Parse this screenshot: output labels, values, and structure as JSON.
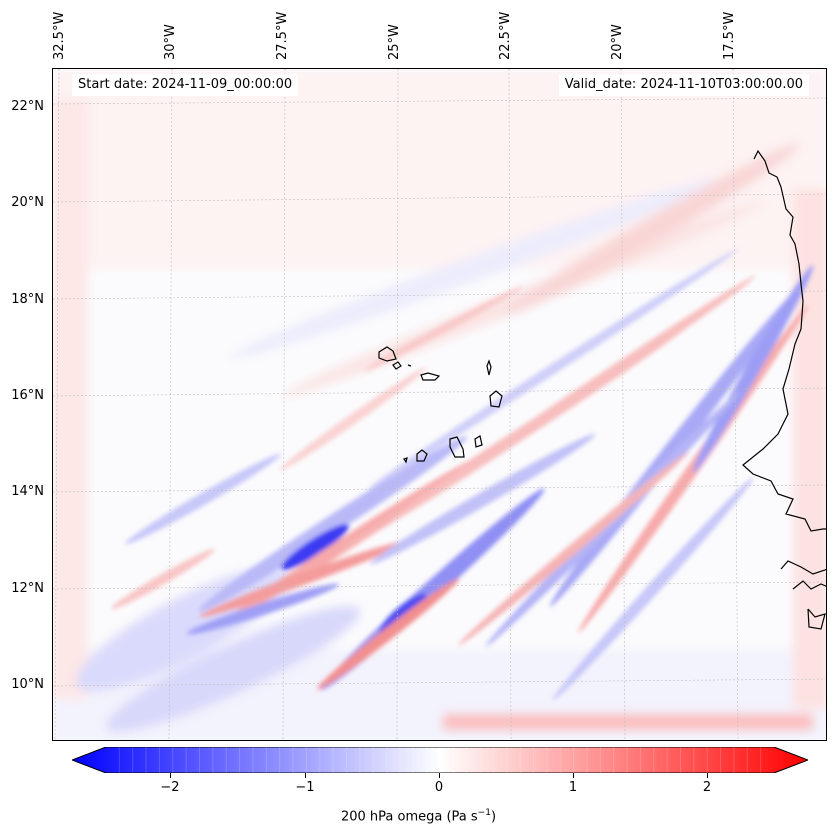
{
  "header": {
    "start_date": "Start date: 2024-11-09_00:00:00",
    "valid_date": "Valid_date: 2024-11-10T03:00:00.00"
  },
  "longitude_labels": [
    "32.5°W",
    "30°W",
    "27.5°W",
    "25°W",
    "22.5°W",
    "20°W",
    "17.5°W"
  ],
  "latitude_labels": [
    "22°N",
    "20°N",
    "18°N",
    "16°N",
    "14°N",
    "12°N",
    "10°N"
  ],
  "colorbar": {
    "ticks": [
      "−2",
      "−1",
      "0",
      "1",
      "2"
    ],
    "tick_values": [
      -2,
      -1,
      0,
      1,
      2
    ],
    "range": [
      -2.5,
      2.5
    ],
    "extend": "both",
    "colormap": "bwr",
    "label": "200 hPa omega (Pa s",
    "label_sup": "−1",
    "label_end": ")"
  },
  "colors": {
    "negative": "#0000ff",
    "zero": "#ffffff",
    "positive": "#ff0000",
    "coastline": "#000000"
  }
}
